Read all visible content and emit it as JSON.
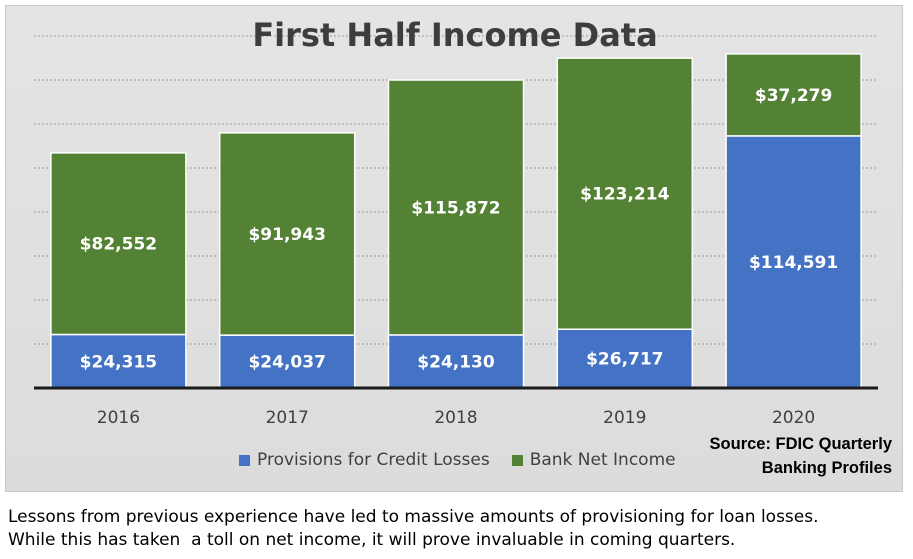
{
  "chart_data": {
    "type": "bar",
    "stacked": true,
    "title": "First Half Income Data",
    "categories": [
      "2016",
      "2017",
      "2018",
      "2019",
      "2020"
    ],
    "series": [
      {
        "name": "Provisions for Credit Losses",
        "color": "#4472c4",
        "values": [
          24315,
          24037,
          24130,
          26717,
          114591
        ],
        "labels": [
          "$24,315",
          "$24,037",
          "$24,130",
          "$26,717",
          "$114,591"
        ]
      },
      {
        "name": "Bank Net Income",
        "color": "#548235",
        "values": [
          82552,
          91943,
          115872,
          123214,
          37279
        ],
        "labels": [
          "$82,552",
          "$91,943",
          "$115,872",
          "$123,214",
          "$37,279"
        ]
      }
    ],
    "ylim": [
      0,
      160000
    ],
    "grid": true,
    "legend_position": "bottom"
  },
  "source": {
    "line1": "Source: FDIC Quarterly",
    "line2": "Banking Profiles"
  },
  "caption": {
    "line1": "Lessons from previous experience have led to massive amounts of provisioning for loan losses.",
    "line2": "While this has taken  a toll on net income, it will prove invaluable in coming quarters."
  }
}
